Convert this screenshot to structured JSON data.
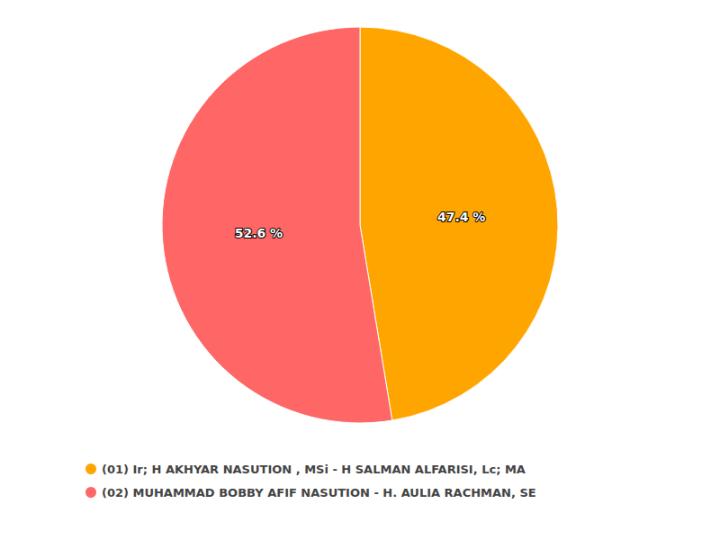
{
  "chart_data": {
    "type": "pie",
    "categories": [
      "(01) Ir; H AKHYAR NASUTION , MSi - H SALMAN ALFARISI, Lc; MA",
      "(02) MUHAMMAD BOBBY AFIF NASUTION - H. AULIA RACHMAN, SE"
    ],
    "values": [
      47.4,
      52.6
    ],
    "value_labels": [
      "47.4 %",
      "52.6 %"
    ],
    "colors": [
      "#ffa500",
      "#ff6666"
    ],
    "data_labels": true,
    "legend": "bottom"
  }
}
